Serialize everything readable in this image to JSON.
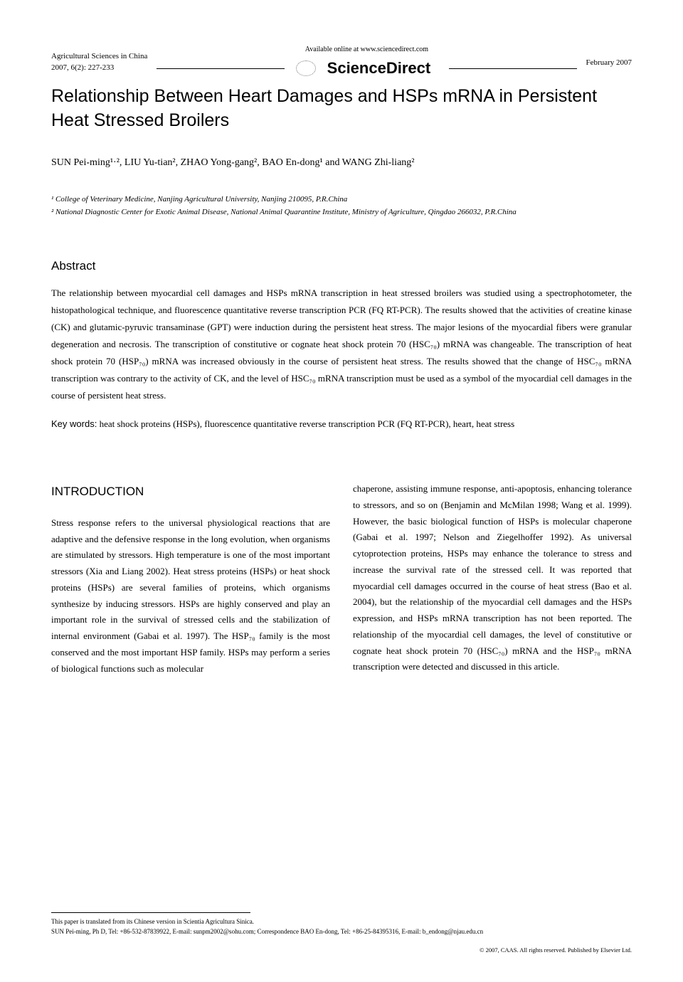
{
  "header": {
    "journal": "Agricultural Sciences in China",
    "citation": "2007, 6(2): 227-233",
    "available": "Available online at www.sciencedirect.com",
    "sd": "ScienceDirect",
    "date": "February 2007"
  },
  "title": "Relationship Between Heart Damages and HSPs mRNA in Persistent Heat Stressed Broilers",
  "authors": "SUN Pei-ming¹·², LIU Yu-tian², ZHAO Yong-gang², BAO En-dong¹ and WANG Zhi-liang²",
  "affiliations": {
    "a1": "¹ College of Veterinary Medicine, Nanjing Agricultural University, Nanjing 210095, P.R.China",
    "a2": "² National Diagnostic Center for Exotic Animal Disease, National Animal Quarantine Institute, Ministry of Agriculture, Qingdao 266032, P.R.China"
  },
  "abstract": {
    "heading": "Abstract",
    "text": "The relationship between myocardial cell damages and HSPs mRNA transcription in heat stressed broilers was studied using a spectrophotometer, the histopathological technique, and fluorescence quantitative reverse transcription PCR (FQ RT-PCR). The results showed that the activities of creatine kinase (CK) and glutamic-pyruvic transaminase (GPT) were induction during the persistent heat stress. The major lesions of the myocardial fibers were granular degeneration and necrosis. The transcription of constitutive or cognate heat shock protein 70 (HSC₇₀) mRNA was changeable. The transcription of heat shock protein 70 (HSP₇₀) mRNA was increased obviously in the course of persistent heat stress. The results showed that the change of HSC₇₀ mRNA transcription was contrary to the activity of CK, and the level of HSC₇₀ mRNA transcription must be used as a symbol of the myocardial cell damages in the course of persistent heat stress."
  },
  "keywords": {
    "label": "Key words:",
    "text": " heat shock proteins (HSPs), fluorescence quantitative reverse transcription PCR (FQ RT-PCR), heart, heat stress"
  },
  "introduction": {
    "heading": "INTRODUCTION",
    "col1": "Stress response refers to the universal physiological reactions that are adaptive and the defensive response in the long evolution, when organisms are stimulated by stressors. High temperature is one of the most important stressors (Xia and Liang 2002). Heat stress proteins (HSPs) or heat shock proteins (HSPs) are several families of proteins, which organisms synthesize by inducing stressors. HSPs are highly conserved and play an important role in the survival of stressed cells and the stabilization of internal environment (Gabai et al. 1997). The HSP₇₀ family is the most conserved and the most important HSP family. HSPs may perform a series of biological functions such as molecular",
    "col2": "chaperone, assisting immune response, anti-apoptosis, enhancing tolerance to stressors, and so on (Benjamin and McMilan 1998; Wang et al. 1999). However, the basic biological function of HSPs is molecular chaperone (Gabai et al. 1997; Nelson and Ziegelhoffer 1992). As universal cytoprotection proteins, HSPs may enhance the tolerance to stress and increase the survival rate of the stressed cell. It was reported that myocardial cell damages occurred in the course of heat stress (Bao et al. 2004), but the relationship of the myocardial cell damages and the HSPs expression, and HSPs mRNA transcription has not been reported. The relationship of the myocardial cell damages, the level of constitutive or cognate heat shock protein 70 (HSC₇₀) mRNA and the HSP₇₀ mRNA transcription were detected and discussed in this article."
  },
  "footer": {
    "note1": "This paper is translated from its Chinese version in Scientia Agricultura Sinica.",
    "note2": "SUN Pei-ming, Ph D, Tel: +86-532-87839922, E-mail: sunpm2002@sohu.com; Correspondence BAO En-dong, Tel: +86-25-84395316, E-mail: b_endong@njau.edu.cn",
    "copyright": "© 2007, CAAS. All rights reserved. Published by Elsevier Ltd."
  }
}
